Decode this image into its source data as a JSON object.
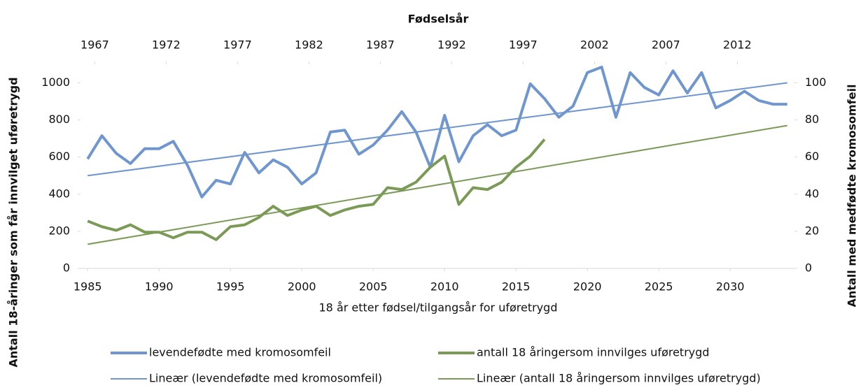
{
  "chart_data": {
    "type": "line",
    "x2label": "Fødselsår",
    "xlabel": "18 år etter fødsel/tilgangsår for uføretrygd",
    "ylabel": "Antall 18-åringer som får  innvilget uføretrygd",
    "y2label": "Antall med medfødte kromosomfeil",
    "x": [
      1985,
      1986,
      1987,
      1988,
      1989,
      1990,
      1991,
      1992,
      1993,
      1994,
      1995,
      1996,
      1997,
      1998,
      1999,
      2000,
      2001,
      2002,
      2003,
      2004,
      2005,
      2006,
      2007,
      2008,
      2009,
      2010,
      2011,
      2012,
      2013,
      2014,
      2015,
      2016,
      2017,
      2018,
      2019,
      2020,
      2021,
      2022,
      2023,
      2024,
      2025,
      2026,
      2027,
      2028,
      2029,
      2030,
      2031,
      2032,
      2033,
      2034
    ],
    "xlim": [
      1984.5,
      2034.5
    ],
    "xticks": [
      1985,
      1990,
      1995,
      2000,
      2005,
      2010,
      2015,
      2020,
      2025,
      2030
    ],
    "x2lim": [
      1966,
      2016
    ],
    "x2ticks": [
      1967,
      1972,
      1977,
      1982,
      1987,
      1992,
      1997,
      2002,
      2007,
      2012
    ],
    "ylim": [
      0,
      1100
    ],
    "yticks": [
      0,
      200,
      400,
      600,
      800,
      1000
    ],
    "y2lim": [
      0,
      110
    ],
    "y2ticks": [
      0,
      20,
      40,
      60,
      80,
      100
    ],
    "legend": "bottom",
    "series": [
      {
        "name": "levendefødte med kromosomfeil",
        "color": "#6f96cf",
        "line_width": 4,
        "axis": "y2",
        "values": [
          59,
          71.5,
          62,
          56.5,
          64.5,
          64.5,
          68.5,
          55.5,
          38.5,
          47.5,
          45.5,
          62.5,
          51.5,
          58.5,
          54.5,
          45.5,
          51.5,
          73.5,
          74.5,
          61.5,
          66.5,
          74.5,
          84.5,
          73.5,
          54.5,
          82.5,
          57.5,
          71.5,
          77.5,
          71.5,
          74.5,
          99.5,
          91.5,
          81.5,
          87.5,
          105.5,
          108.5,
          81.5,
          105.5,
          97.5,
          93.5,
          106.5,
          94.5,
          105.5,
          86.5,
          90.5,
          95.5,
          90.5,
          88.5,
          88.5
        ]
      },
      {
        "name": "antall 18 åringersom innvilges uføretrygd",
        "color": "#7a9a56",
        "line_width": 4,
        "values": [
          255,
          225,
          205,
          235,
          195,
          195,
          165,
          195,
          195,
          155,
          225,
          235,
          275,
          335,
          285,
          315,
          335,
          285,
          315,
          335,
          345,
          435,
          425,
          465,
          545,
          605,
          345,
          435,
          425,
          465,
          545,
          605,
          695,
          null,
          null,
          null,
          null,
          null,
          null,
          null,
          null,
          null,
          null,
          null,
          null,
          null,
          null,
          null,
          null,
          null
        ]
      },
      {
        "name": "Lineær (levendefødte med kromosomfeil)",
        "color": "#6f96cf",
        "line_width": 2,
        "axis": "y2",
        "x": [
          1985,
          2034
        ],
        "values": [
          50,
          100
        ]
      },
      {
        "name": "Lineær (antall 18 åringersom innvilges uføretrygd)",
        "color": "#7a9a56",
        "line_width": 2,
        "x": [
          1985,
          2034
        ],
        "values": [
          130,
          770
        ]
      }
    ]
  }
}
